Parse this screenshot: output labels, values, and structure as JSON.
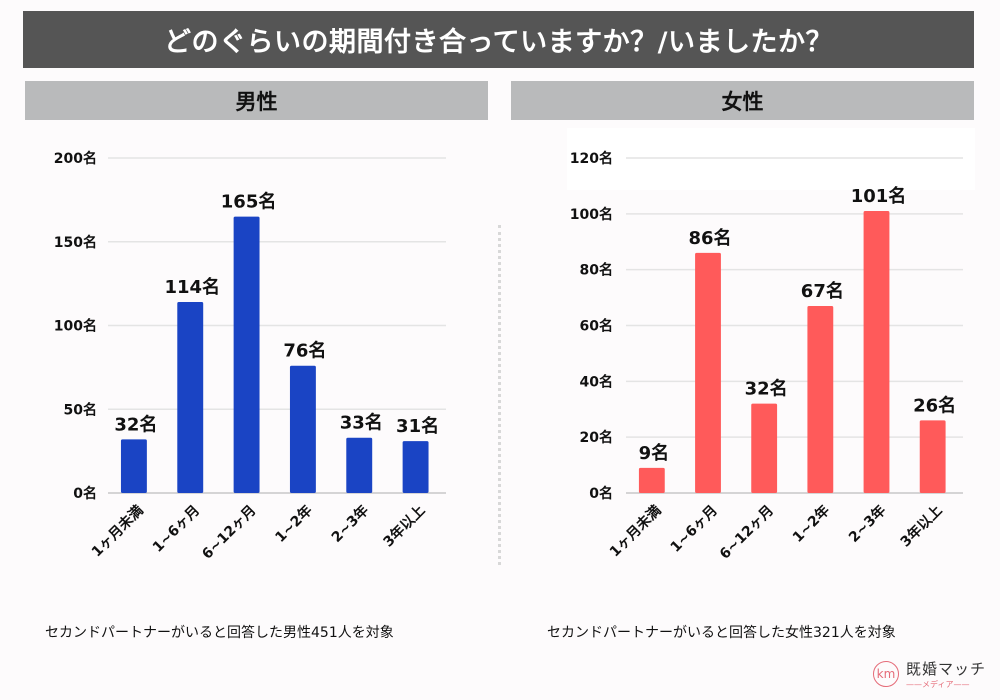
{
  "title": "どのぐらいの期間付き合っていますか？/いましたか？",
  "panels": {
    "male": {
      "header": "男性",
      "note": "セカンドパートナーがいると回答した男性451人を対象"
    },
    "female": {
      "header": "女性",
      "note": "セカンドパートナーがいると回答した女性321人を対象"
    }
  },
  "logo": {
    "mark": "km",
    "name": "既婚マッチ",
    "sub": "——メディア——"
  },
  "colors": {
    "male_bar": "#1a44c4",
    "female_bar": "#ff5a5a",
    "title_bg": "#555555",
    "header_bg": "#b9babb"
  },
  "chart_data": [
    {
      "type": "bar",
      "title": "男性",
      "categories": [
        "1ヶ月未満",
        "1~6ヶ月",
        "6~12ヶ月",
        "1~2年",
        "2~3年",
        "3年以上"
      ],
      "values": [
        32,
        114,
        165,
        76,
        33,
        31
      ],
      "value_labels": [
        "32名",
        "114名",
        "165名",
        "76名",
        "33名",
        "31名"
      ],
      "ylim": [
        0,
        200
      ],
      "yticks": [
        0,
        50,
        100,
        150,
        200
      ],
      "ytick_labels": [
        "0名",
        "50名",
        "100名",
        "150名",
        "200名"
      ],
      "unit": "名",
      "grid": true,
      "xlabel": "",
      "ylabel": "",
      "color": "#1a44c4"
    },
    {
      "type": "bar",
      "title": "女性",
      "categories": [
        "1ヶ月未満",
        "1~6ヶ月",
        "6~12ヶ月",
        "1~2年",
        "2~3年",
        "3年以上"
      ],
      "values": [
        9,
        86,
        32,
        67,
        101,
        26
      ],
      "value_labels": [
        "9名",
        "86名",
        "32名",
        "67名",
        "101名",
        "26名"
      ],
      "ylim": [
        0,
        120
      ],
      "yticks": [
        0,
        20,
        40,
        60,
        80,
        100,
        120
      ],
      "ytick_labels": [
        "0名",
        "20名",
        "40名",
        "60名",
        "80名",
        "100名",
        "120名"
      ],
      "unit": "名",
      "grid": true,
      "xlabel": "",
      "ylabel": "",
      "color": "#ff5a5a"
    }
  ]
}
